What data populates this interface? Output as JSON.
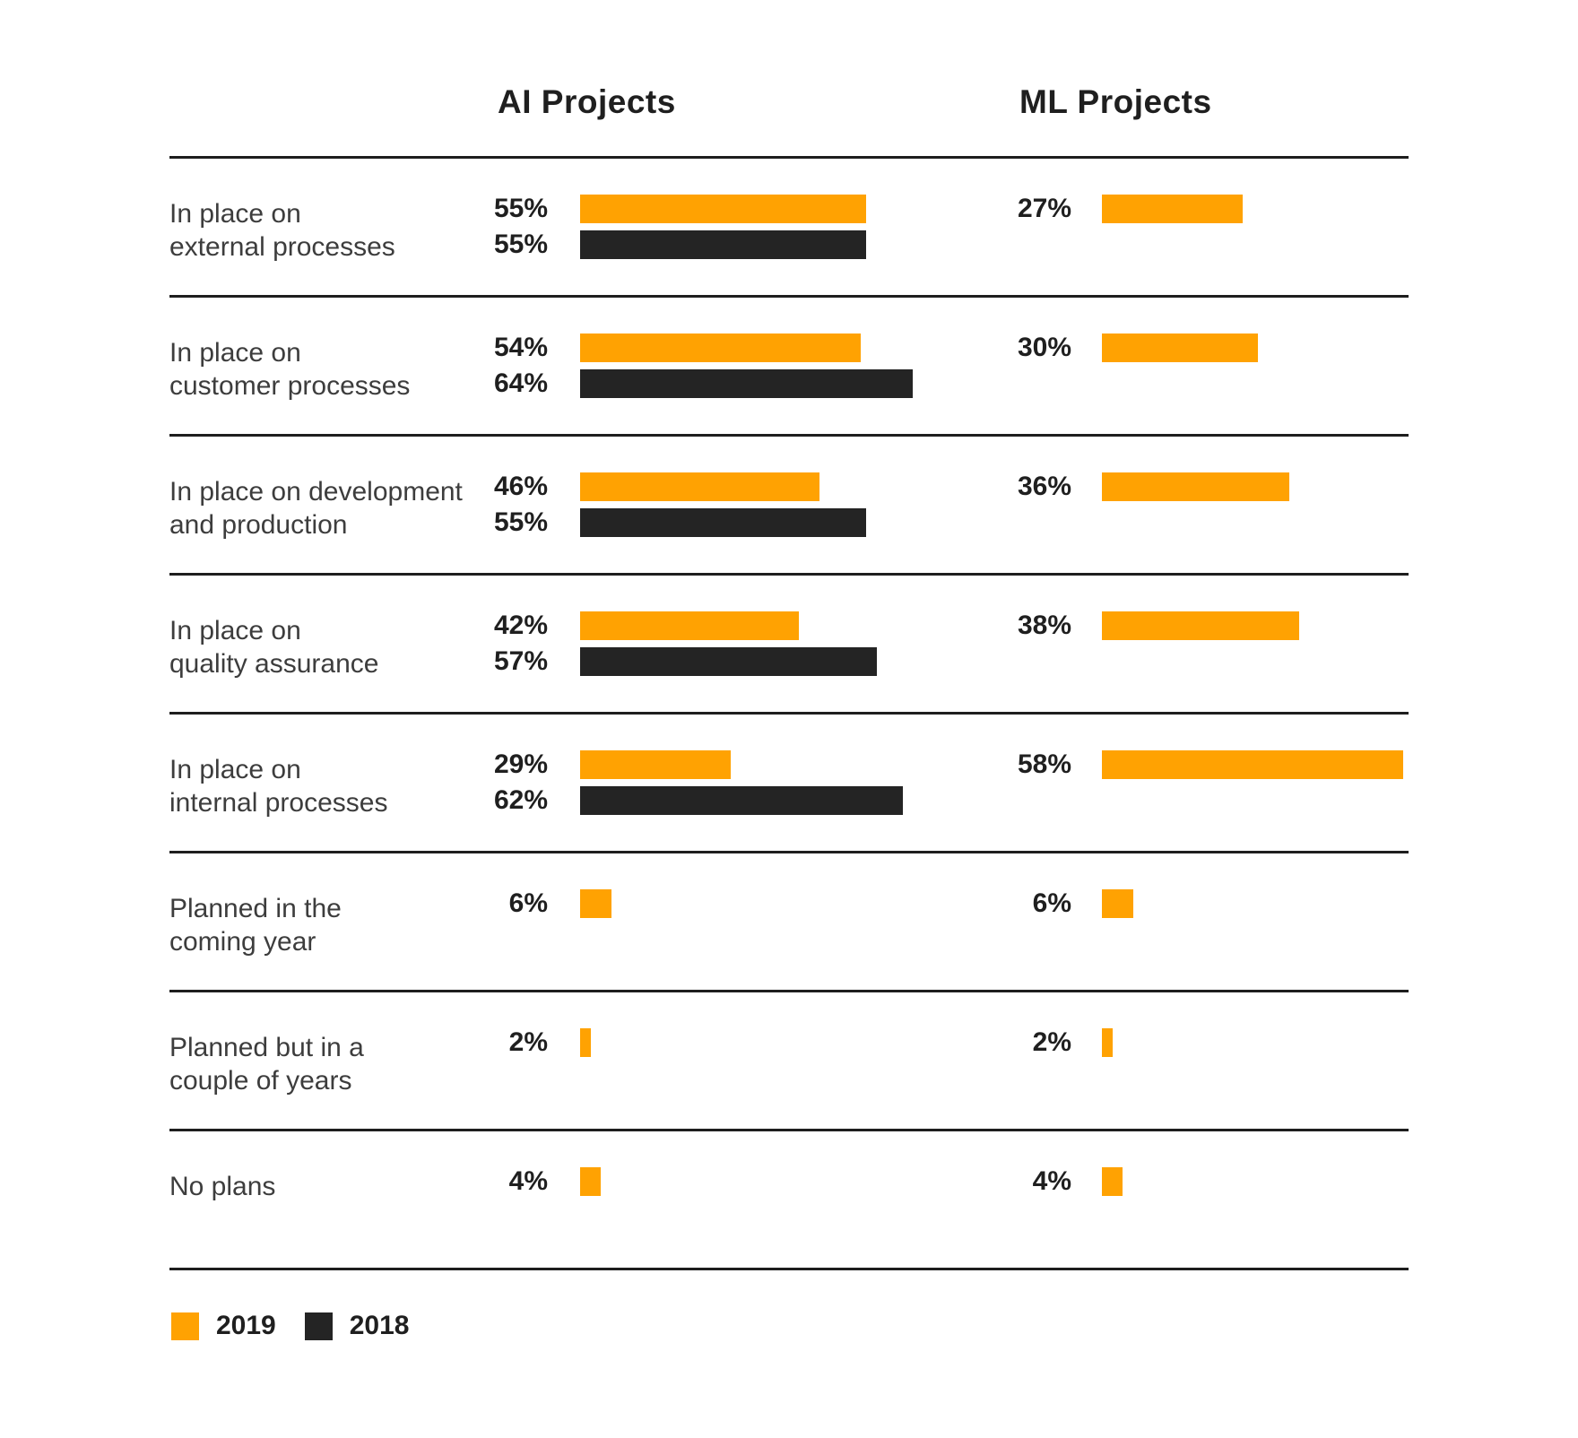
{
  "colors": {
    "y2019": "#FFA202",
    "y2018": "#242424",
    "rule": "#1e1e1e"
  },
  "headers": {
    "ai": "AI Projects",
    "ml": "ML Projects"
  },
  "legend": [
    {
      "label": "2019",
      "color": "#FFA202"
    },
    {
      "label": "2018",
      "color": "#242424"
    }
  ],
  "chart_data": {
    "type": "bar",
    "orientation": "horizontal",
    "unit": "%",
    "value_labels": "shown left of each bar",
    "grid": "horizontal separator line between each category row",
    "legend_position": "bottom-left",
    "categories": [
      "In place on external processes",
      "In place on customer processes",
      "In place on development and production",
      "In place on quality assurance",
      "In place on internal processes",
      "Planned in the coming year",
      "Planned but in a couple of years",
      "No plans"
    ],
    "charts": [
      {
        "title": "AI Projects",
        "series": [
          {
            "name": "2019",
            "values": [
              55,
              54,
              46,
              42,
              29,
              6,
              2,
              4
            ]
          },
          {
            "name": "2018",
            "values": [
              55,
              64,
              55,
              57,
              62,
              null,
              null,
              null
            ]
          }
        ]
      },
      {
        "title": "ML Projects",
        "series": [
          {
            "name": "2019",
            "values": [
              27,
              30,
              36,
              38,
              58,
              6,
              2,
              4
            ]
          }
        ]
      }
    ]
  },
  "rows": [
    {
      "label_lines": [
        "In place on",
        "external processes"
      ],
      "ai_2019": "55%",
      "ai_2018": "55%",
      "ml_2019": "27%"
    },
    {
      "label_lines": [
        "In place on",
        "customer processes"
      ],
      "ai_2019": "54%",
      "ai_2018": "64%",
      "ml_2019": "30%"
    },
    {
      "label_lines": [
        "In place on development",
        "and production"
      ],
      "ai_2019": "46%",
      "ai_2018": "55%",
      "ml_2019": "36%"
    },
    {
      "label_lines": [
        "In place on",
        "quality assurance"
      ],
      "ai_2019": "42%",
      "ai_2018": "57%",
      "ml_2019": "38%"
    },
    {
      "label_lines": [
        "In place on",
        "internal processes"
      ],
      "ai_2019": "29%",
      "ai_2018": "62%",
      "ml_2019": "58%"
    },
    {
      "label_lines": [
        "Planned in the",
        "coming year"
      ],
      "ai_2019": "6%",
      "ai_2018": null,
      "ml_2019": "6%"
    },
    {
      "label_lines": [
        "Planned but in a",
        "couple of years"
      ],
      "ai_2019": "2%",
      "ai_2018": null,
      "ml_2019": "2%"
    },
    {
      "label_lines": [
        "No plans"
      ],
      "ai_2019": "4%",
      "ai_2018": null,
      "ml_2019": "4%"
    }
  ]
}
